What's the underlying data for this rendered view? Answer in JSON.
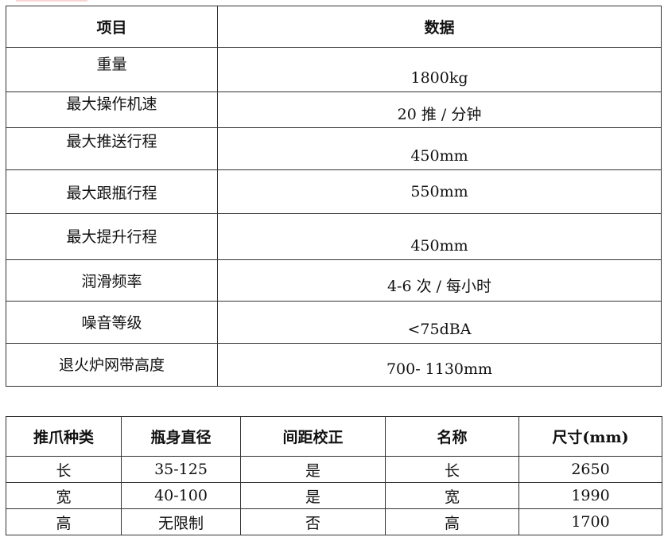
{
  "spec_table": {
    "headers": [
      "项目",
      "数据"
    ],
    "rows": [
      {
        "item": "重量",
        "value": "1800kg"
      },
      {
        "item": "最大操作机速",
        "value": "20 推 / 分钟"
      },
      {
        "item": "最大推送行程",
        "value": "450mm"
      },
      {
        "item": "最大跟瓶行程",
        "value": "550mm"
      },
      {
        "item": "最大提升行程",
        "value": "450mm"
      },
      {
        "item": "润滑频率",
        "value": "4-6 次 / 每小时"
      },
      {
        "item": "噪音等级",
        "value": "<75dBA"
      },
      {
        "item": "退火炉网带高度",
        "value": "700- 1130mm"
      }
    ]
  },
  "finger_table": {
    "headers": [
      "推爪种类",
      "瓶身直径",
      "间距校正",
      "名称",
      "尺寸(mm)"
    ],
    "rows": [
      [
        "长",
        "35-125",
        "是",
        "长",
        "2650"
      ],
      [
        "宽",
        "40-100",
        "是",
        "宽",
        "1990"
      ],
      [
        "高",
        "无限制",
        "否",
        "高",
        "1700"
      ]
    ]
  }
}
